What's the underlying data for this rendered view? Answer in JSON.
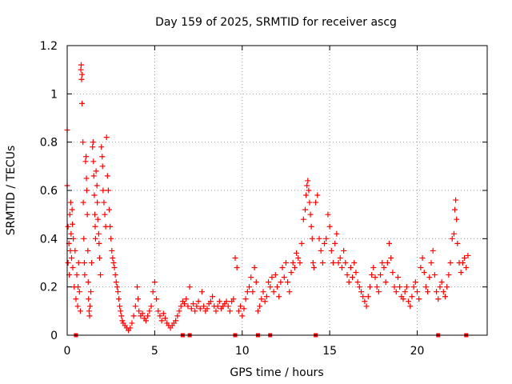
{
  "chart_data": {
    "type": "scatter",
    "title": "Day 159 of 2025, SRMTID for receiver ascg",
    "xlabel": "GPS time / hours",
    "ylabel": "SRMTID / TECUs",
    "xlim": [
      0,
      24
    ],
    "ylim": [
      0,
      1.2
    ],
    "xticks": [
      0,
      5,
      10,
      15,
      20
    ],
    "xtick_labels": [
      "0",
      "5",
      "10",
      "15",
      "20"
    ],
    "yticks": [
      0,
      0.2,
      0.4,
      0.6,
      0.8,
      1,
      1.2
    ],
    "ytick_labels": [
      "0",
      "0.2",
      "0.4",
      "0.6",
      "0.8",
      "1",
      "1.2"
    ],
    "grid": true,
    "marker": "plus",
    "series_color": "#ff0000",
    "series": [
      {
        "name": "SRMTID",
        "points": [
          [
            0.0,
            0.85
          ],
          [
            0.0,
            0.62
          ],
          [
            0.05,
            0.3
          ],
          [
            0.05,
            0.45
          ],
          [
            0.1,
            0.38
          ],
          [
            0.12,
            0.25
          ],
          [
            0.15,
            0.5
          ],
          [
            0.18,
            0.35
          ],
          [
            0.2,
            0.55
          ],
          [
            0.22,
            0.42
          ],
          [
            0.25,
            0.32
          ],
          [
            0.28,
            0.52
          ],
          [
            0.3,
            0.46
          ],
          [
            0.32,
            0.28
          ],
          [
            0.35,
            0.4
          ],
          [
            0.4,
            0.2
          ],
          [
            0.45,
            0.35
          ],
          [
            0.5,
            0.15
          ],
          [
            0.55,
            0.25
          ],
          [
            0.6,
            0.12
          ],
          [
            0.62,
            0.2
          ],
          [
            0.65,
            0.3
          ],
          [
            0.7,
            0.18
          ],
          [
            0.75,
            0.1
          ],
          [
            0.78,
            1.1
          ],
          [
            0.8,
            1.12
          ],
          [
            0.82,
            1.06
          ],
          [
            0.85,
            1.08
          ],
          [
            0.85,
            0.96
          ],
          [
            0.9,
            0.8
          ],
          [
            0.92,
            0.55
          ],
          [
            0.95,
            0.4
          ],
          [
            0.98,
            0.3
          ],
          [
            1.0,
            0.25
          ],
          [
            1.05,
            0.72
          ],
          [
            1.08,
            0.74
          ],
          [
            1.1,
            0.65
          ],
          [
            1.12,
            0.6
          ],
          [
            1.15,
            0.5
          ],
          [
            1.18,
            0.35
          ],
          [
            1.2,
            0.22
          ],
          [
            1.22,
            0.15
          ],
          [
            1.25,
            0.1
          ],
          [
            1.28,
            0.08
          ],
          [
            1.3,
            0.12
          ],
          [
            1.35,
            0.18
          ],
          [
            1.4,
            0.3
          ],
          [
            1.45,
            0.78
          ],
          [
            1.48,
            0.8
          ],
          [
            1.5,
            0.72
          ],
          [
            1.52,
            0.66
          ],
          [
            1.55,
            0.58
          ],
          [
            1.58,
            0.5
          ],
          [
            1.6,
            0.45
          ],
          [
            1.62,
            0.4
          ],
          [
            1.65,
            0.68
          ],
          [
            1.7,
            0.62
          ],
          [
            1.72,
            0.55
          ],
          [
            1.75,
            0.48
          ],
          [
            1.8,
            0.42
          ],
          [
            1.82,
            0.38
          ],
          [
            1.85,
            0.32
          ],
          [
            1.9,
            0.25
          ],
          [
            1.95,
            0.78
          ],
          [
            2.0,
            0.74
          ],
          [
            2.02,
            0.7
          ],
          [
            2.05,
            0.6
          ],
          [
            2.1,
            0.55
          ],
          [
            2.15,
            0.5
          ],
          [
            2.2,
            0.45
          ],
          [
            2.25,
            0.82
          ],
          [
            2.3,
            0.66
          ],
          [
            2.35,
            0.6
          ],
          [
            2.4,
            0.52
          ],
          [
            2.45,
            0.45
          ],
          [
            2.5,
            0.4
          ],
          [
            2.55,
            0.35
          ],
          [
            2.6,
            0.32
          ],
          [
            2.65,
            0.3
          ],
          [
            2.7,
            0.28
          ],
          [
            2.75,
            0.25
          ],
          [
            2.8,
            0.22
          ],
          [
            2.85,
            0.2
          ],
          [
            2.9,
            0.18
          ],
          [
            2.95,
            0.15
          ],
          [
            3.0,
            0.12
          ],
          [
            3.05,
            0.1
          ],
          [
            3.1,
            0.08
          ],
          [
            3.15,
            0.06
          ],
          [
            3.2,
            0.05
          ],
          [
            3.3,
            0.04
          ],
          [
            3.4,
            0.03
          ],
          [
            3.5,
            0.02
          ],
          [
            3.6,
            0.03
          ],
          [
            3.7,
            0.05
          ],
          [
            3.8,
            0.08
          ],
          [
            3.9,
            0.12
          ],
          [
            4.0,
            0.2
          ],
          [
            4.05,
            0.15
          ],
          [
            4.1,
            0.1
          ],
          [
            4.2,
            0.08
          ],
          [
            4.3,
            0.09
          ],
          [
            4.4,
            0.07
          ],
          [
            4.5,
            0.06
          ],
          [
            4.6,
            0.08
          ],
          [
            4.7,
            0.1
          ],
          [
            4.8,
            0.12
          ],
          [
            4.9,
            0.18
          ],
          [
            5.0,
            0.22
          ],
          [
            5.1,
            0.15
          ],
          [
            5.2,
            0.1
          ],
          [
            5.3,
            0.08
          ],
          [
            5.4,
            0.06
          ],
          [
            5.5,
            0.09
          ],
          [
            5.6,
            0.07
          ],
          [
            5.7,
            0.05
          ],
          [
            5.8,
            0.04
          ],
          [
            5.9,
            0.03
          ],
          [
            6.0,
            0.04
          ],
          [
            6.1,
            0.05
          ],
          [
            6.2,
            0.06
          ],
          [
            6.3,
            0.08
          ],
          [
            6.4,
            0.1
          ],
          [
            6.5,
            0.12
          ],
          [
            6.6,
            0.14
          ],
          [
            6.7,
            0.13
          ],
          [
            6.8,
            0.15
          ],
          [
            6.9,
            0.12
          ],
          [
            7.0,
            0.2
          ],
          [
            7.1,
            0.11
          ],
          [
            7.2,
            0.13
          ],
          [
            7.3,
            0.1
          ],
          [
            7.4,
            0.12
          ],
          [
            7.5,
            0.14
          ],
          [
            7.6,
            0.11
          ],
          [
            7.7,
            0.18
          ],
          [
            7.8,
            0.12
          ],
          [
            7.9,
            0.1
          ],
          [
            8.0,
            0.11
          ],
          [
            8.1,
            0.13
          ],
          [
            8.2,
            0.14
          ],
          [
            8.3,
            0.16
          ],
          [
            8.4,
            0.12
          ],
          [
            8.5,
            0.1
          ],
          [
            8.6,
            0.12
          ],
          [
            8.7,
            0.14
          ],
          [
            8.8,
            0.11
          ],
          [
            8.9,
            0.12
          ],
          [
            9.0,
            0.13
          ],
          [
            9.1,
            0.14
          ],
          [
            9.2,
            0.12
          ],
          [
            9.3,
            0.1
          ],
          [
            9.4,
            0.14
          ],
          [
            9.5,
            0.15
          ],
          [
            9.6,
            0.32
          ],
          [
            9.7,
            0.28
          ],
          [
            9.8,
            0.1
          ],
          [
            9.9,
            0.12
          ],
          [
            10.0,
            0.08
          ],
          [
            10.1,
            0.11
          ],
          [
            10.2,
            0.15
          ],
          [
            10.3,
            0.18
          ],
          [
            10.4,
            0.2
          ],
          [
            10.5,
            0.24
          ],
          [
            10.6,
            0.18
          ],
          [
            10.7,
            0.28
          ],
          [
            10.8,
            0.22
          ],
          [
            10.9,
            0.1
          ],
          [
            11.0,
            0.12
          ],
          [
            11.1,
            0.15
          ],
          [
            11.2,
            0.18
          ],
          [
            11.3,
            0.14
          ],
          [
            11.4,
            0.16
          ],
          [
            11.5,
            0.22
          ],
          [
            11.6,
            0.2
          ],
          [
            11.7,
            0.24
          ],
          [
            11.8,
            0.18
          ],
          [
            11.9,
            0.25
          ],
          [
            12.0,
            0.2
          ],
          [
            12.1,
            0.16
          ],
          [
            12.2,
            0.22
          ],
          [
            12.3,
            0.28
          ],
          [
            12.4,
            0.24
          ],
          [
            12.5,
            0.3
          ],
          [
            12.6,
            0.22
          ],
          [
            12.7,
            0.18
          ],
          [
            12.8,
            0.26
          ],
          [
            12.9,
            0.3
          ],
          [
            13.0,
            0.28
          ],
          [
            13.1,
            0.34
          ],
          [
            13.2,
            0.32
          ],
          [
            13.3,
            0.3
          ],
          [
            13.4,
            0.38
          ],
          [
            13.5,
            0.48
          ],
          [
            13.6,
            0.52
          ],
          [
            13.65,
            0.58
          ],
          [
            13.7,
            0.62
          ],
          [
            13.75,
            0.64
          ],
          [
            13.8,
            0.6
          ],
          [
            13.85,
            0.55
          ],
          [
            13.9,
            0.5
          ],
          [
            13.95,
            0.45
          ],
          [
            14.0,
            0.4
          ],
          [
            14.05,
            0.3
          ],
          [
            14.1,
            0.28
          ],
          [
            14.2,
            0.55
          ],
          [
            14.3,
            0.58
          ],
          [
            14.4,
            0.4
          ],
          [
            14.5,
            0.35
          ],
          [
            14.6,
            0.3
          ],
          [
            14.7,
            0.38
          ],
          [
            14.8,
            0.4
          ],
          [
            14.9,
            0.5
          ],
          [
            15.0,
            0.45
          ],
          [
            15.1,
            0.35
          ],
          [
            15.2,
            0.3
          ],
          [
            15.3,
            0.38
          ],
          [
            15.4,
            0.42
          ],
          [
            15.5,
            0.3
          ],
          [
            15.6,
            0.32
          ],
          [
            15.7,
            0.28
          ],
          [
            15.8,
            0.35
          ],
          [
            15.9,
            0.3
          ],
          [
            16.0,
            0.25
          ],
          [
            16.1,
            0.22
          ],
          [
            16.2,
            0.28
          ],
          [
            16.3,
            0.24
          ],
          [
            16.4,
            0.3
          ],
          [
            16.5,
            0.26
          ],
          [
            16.6,
            0.22
          ],
          [
            16.7,
            0.2
          ],
          [
            16.8,
            0.18
          ],
          [
            16.9,
            0.16
          ],
          [
            17.0,
            0.14
          ],
          [
            17.1,
            0.12
          ],
          [
            17.2,
            0.16
          ],
          [
            17.3,
            0.2
          ],
          [
            17.4,
            0.25
          ],
          [
            17.5,
            0.28
          ],
          [
            17.6,
            0.24
          ],
          [
            17.7,
            0.2
          ],
          [
            17.8,
            0.18
          ],
          [
            17.9,
            0.25
          ],
          [
            18.0,
            0.3
          ],
          [
            18.1,
            0.28
          ],
          [
            18.2,
            0.22
          ],
          [
            18.3,
            0.3
          ],
          [
            18.4,
            0.38
          ],
          [
            18.5,
            0.32
          ],
          [
            18.6,
            0.26
          ],
          [
            18.7,
            0.2
          ],
          [
            18.8,
            0.18
          ],
          [
            18.9,
            0.24
          ],
          [
            19.0,
            0.2
          ],
          [
            19.1,
            0.16
          ],
          [
            19.2,
            0.15
          ],
          [
            19.3,
            0.18
          ],
          [
            19.4,
            0.2
          ],
          [
            19.5,
            0.14
          ],
          [
            19.6,
            0.12
          ],
          [
            19.7,
            0.16
          ],
          [
            19.8,
            0.2
          ],
          [
            19.9,
            0.22
          ],
          [
            20.0,
            0.18
          ],
          [
            20.1,
            0.15
          ],
          [
            20.2,
            0.28
          ],
          [
            20.3,
            0.32
          ],
          [
            20.4,
            0.26
          ],
          [
            20.5,
            0.2
          ],
          [
            20.6,
            0.18
          ],
          [
            20.7,
            0.24
          ],
          [
            20.8,
            0.3
          ],
          [
            20.9,
            0.35
          ],
          [
            21.0,
            0.25
          ],
          [
            21.1,
            0.18
          ],
          [
            21.2,
            0.15
          ],
          [
            21.3,
            0.2
          ],
          [
            21.4,
            0.22
          ],
          [
            21.5,
            0.18
          ],
          [
            21.6,
            0.16
          ],
          [
            21.7,
            0.2
          ],
          [
            21.8,
            0.25
          ],
          [
            21.9,
            0.3
          ],
          [
            22.0,
            0.4
          ],
          [
            22.1,
            0.42
          ],
          [
            22.15,
            0.52
          ],
          [
            22.2,
            0.56
          ],
          [
            22.25,
            0.48
          ],
          [
            22.3,
            0.38
          ],
          [
            22.4,
            0.3
          ],
          [
            22.5,
            0.26
          ],
          [
            22.6,
            0.3
          ],
          [
            22.7,
            0.32
          ],
          [
            22.8,
            0.28
          ],
          [
            22.9,
            0.33
          ]
        ]
      }
    ],
    "zero_markers_x": [
      0.5,
      6.6,
      7.0,
      9.6,
      10.9,
      11.6,
      14.2,
      21.2,
      22.8
    ]
  }
}
